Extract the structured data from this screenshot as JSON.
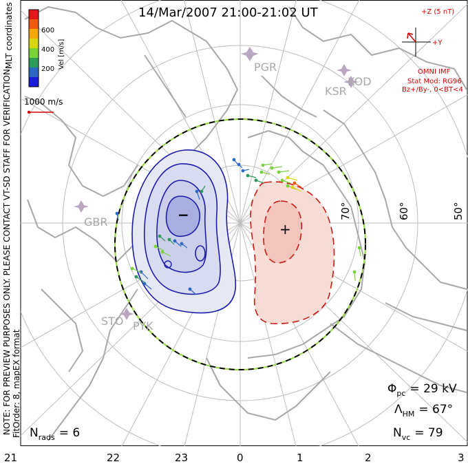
{
  "title": "14/Mar/2007 21:00-21:02 UT",
  "side_note_1": "NOTE: FOR PREVIEW PURPOSES ONLY. PLEASE CONTACT VT-SD STAFF FOR VERIFICATION.",
  "side_note_2": "FitOrder: 8,  mapEX format",
  "side_note_3": "MLT coordinates",
  "colorbar": {
    "label": "Vel [m/s]",
    "ticks": [
      "600",
      "400",
      "200"
    ],
    "colors": [
      "#e8141c",
      "#f05a10",
      "#f7a800",
      "#d6d612",
      "#78d23a",
      "#2e9a5a",
      "#2c68c4",
      "#1a1adc"
    ]
  },
  "ref_vector": {
    "label": "1000 m/s"
  },
  "imf": {
    "z_label": "+Z (5 nT)",
    "y_label": "+Y",
    "line1": "OMNI IMF",
    "line2": "Stat Mod: RG96",
    "line3": "Bz+/By-, 0<BT<4"
  },
  "stations": {
    "pgr": "PGR",
    "ksr": "KSR",
    "kod": "KOD",
    "gbr": "GBR",
    "sto": "STO",
    "pyk": "PYK"
  },
  "lat_labels": [
    "70°",
    "60°",
    "50°"
  ],
  "mlt_ticks": [
    "21",
    "22",
    "23",
    "0",
    "1",
    "2",
    "3"
  ],
  "stats": {
    "phi_sym": "Φ",
    "phi_sub": "pc",
    "phi_val": "= 29  kV",
    "lam_sym": "Λ",
    "lam_sub": "HM",
    "lam_val": "= 67°",
    "nvc_sym": "N",
    "nvc_sub": "vc",
    "nvc_val": "= 79",
    "nrads_sym": "N",
    "nrads_sub": "rads",
    "nrads_val": "= 6"
  },
  "cells": {
    "negative_symbol": "−",
    "positive_symbol": "+",
    "negative_color": "#1c1caa",
    "positive_color": "#cc1a10"
  }
}
